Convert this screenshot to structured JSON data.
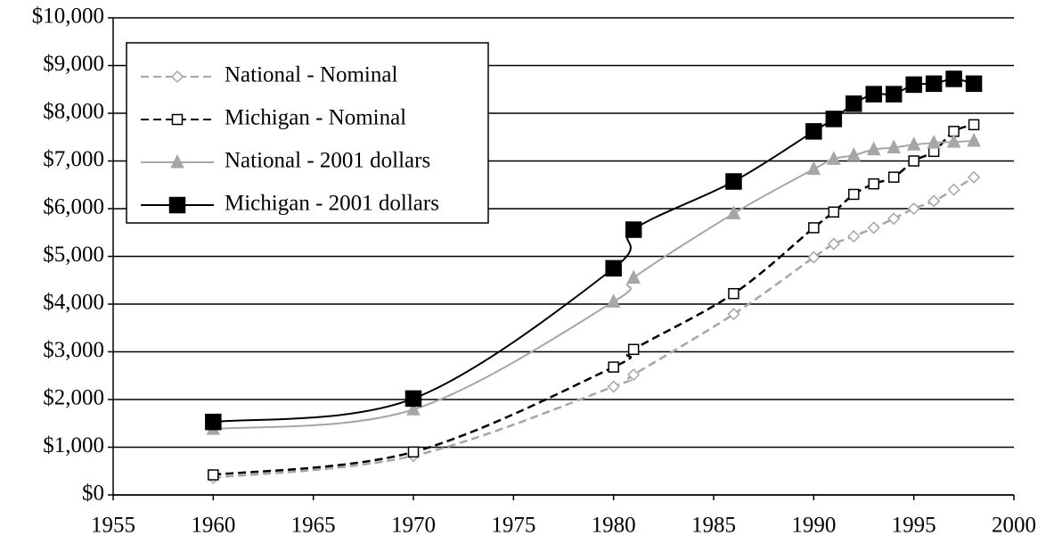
{
  "chart_data": {
    "type": "line",
    "x": [
      1960,
      1970,
      1980,
      1981,
      1986,
      1990,
      1991,
      1992,
      1993,
      1994,
      1995,
      1996,
      1997,
      1998
    ],
    "series": [
      {
        "name": "National - Nominal",
        "color": "#a6a6a6",
        "marker": "diamond",
        "filled": false,
        "dashed": true,
        "values": [
          360,
          820,
          2270,
          2520,
          3790,
          4980,
          5260,
          5420,
          5600,
          5790,
          6000,
          6160,
          6400,
          6660
        ]
      },
      {
        "name": "Michigan - Nominal",
        "color": "#000000",
        "marker": "square",
        "filled": false,
        "dashed": true,
        "values": [
          420,
          900,
          2680,
          3050,
          4220,
          5600,
          5930,
          6300,
          6520,
          6660,
          7000,
          7200,
          7620,
          7760
        ]
      },
      {
        "name": "National - 2001 dollars",
        "color": "#a6a6a6",
        "marker": "triangle",
        "filled": true,
        "dashed": false,
        "values": [
          1380,
          1790,
          4050,
          4550,
          5900,
          6830,
          7040,
          7120,
          7240,
          7280,
          7340,
          7380,
          7400,
          7420
        ]
      },
      {
        "name": "Michigan - 2001 dollars",
        "color": "#000000",
        "marker": "square",
        "filled": true,
        "dashed": false,
        "values": [
          1530,
          2020,
          4750,
          5560,
          6570,
          7620,
          7880,
          8200,
          8400,
          8400,
          8600,
          8620,
          8720,
          8620
        ]
      }
    ],
    "xlim": [
      1955,
      2000
    ],
    "xticks": [
      1955,
      1960,
      1965,
      1970,
      1975,
      1980,
      1985,
      1990,
      1995,
      2000
    ],
    "ylim": [
      0,
      10000
    ],
    "yticks": [
      {
        "value": 0,
        "label": "$0"
      },
      {
        "value": 1000,
        "label": "$1,000"
      },
      {
        "value": 2000,
        "label": "$2,000"
      },
      {
        "value": 3000,
        "label": "$3,000"
      },
      {
        "value": 4000,
        "label": "$4,000"
      },
      {
        "value": 5000,
        "label": "$5,000"
      },
      {
        "value": 6000,
        "label": "$6,000"
      },
      {
        "value": 7000,
        "label": "$7,000"
      },
      {
        "value": 8000,
        "label": "$8,000"
      },
      {
        "value": 9000,
        "label": "$9,000"
      },
      {
        "value": 10000,
        "label": "$10,000"
      }
    ],
    "grid": true,
    "legend": "upper left"
  }
}
